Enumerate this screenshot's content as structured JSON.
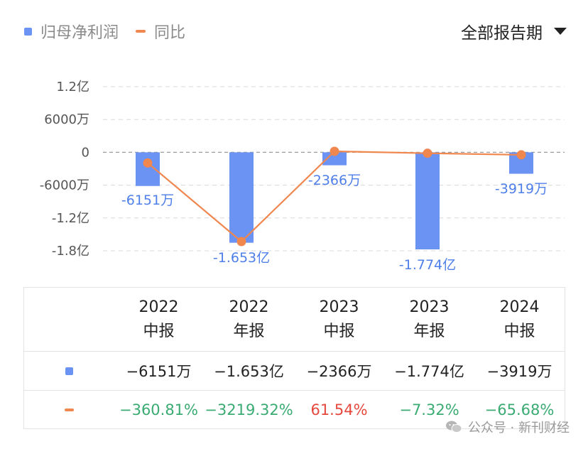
{
  "legend": {
    "bar_label": "归母净利润",
    "line_label": "同比"
  },
  "period_select": {
    "value": "全部报告期"
  },
  "colors": {
    "bar": "#6a93f4",
    "line": "#f0874f",
    "label_blue": "#4f7fe9",
    "positive": "#e5483d",
    "negative": "#3aab72",
    "grid": "#d8d8d8",
    "zero_line": "#9a9a9a"
  },
  "chart_data": {
    "type": "bar",
    "categories": [
      "2022 中报",
      "2022 年报",
      "2023 中报",
      "2023 年报",
      "2024 中报"
    ],
    "y_ticks": [
      "1.2亿",
      "6000万",
      "0",
      "-6000万",
      "-1.2亿",
      "-1.8亿"
    ],
    "y_tick_values": [
      120000000,
      60000000,
      0,
      -60000000,
      -120000000,
      -180000000
    ],
    "ylim": [
      -180000000,
      120000000
    ],
    "grid": true,
    "legend_position": "top-left",
    "series": [
      {
        "name": "归母净利润",
        "type": "bar",
        "values": [
          -61510000,
          -165300000,
          -23660000,
          -177400000,
          -39190000
        ],
        "labels": [
          "-6151万",
          "-1.653亿",
          "-2366万",
          "-1.774亿",
          "-3919万"
        ]
      },
      {
        "name": "同比",
        "type": "line",
        "values": [
          -360.81,
          -3219.32,
          61.54,
          -7.32,
          -65.68
        ],
        "unit": "%"
      }
    ]
  },
  "table": {
    "columns": [
      {
        "year": "2022",
        "period": "中报"
      },
      {
        "year": "2022",
        "period": "年报"
      },
      {
        "year": "2023",
        "period": "中报"
      },
      {
        "year": "2023",
        "period": "年报"
      },
      {
        "year": "2024",
        "period": "中报"
      }
    ],
    "profit_row": [
      "−6151万",
      "−1.653亿",
      "−2366万",
      "−1.774亿",
      "−3919万"
    ],
    "yoy_row": [
      "−360.81%",
      "−3219.32%",
      "61.54%",
      "−7.32%",
      "−65.68%"
    ]
  },
  "watermark": {
    "text": "公众号 · 新刊财经",
    "icon": "wechat-icon"
  }
}
